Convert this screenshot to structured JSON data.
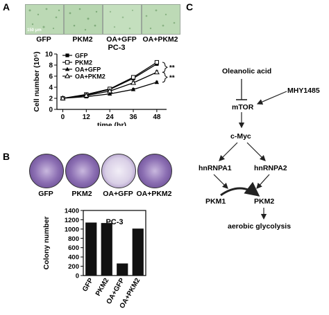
{
  "panels": {
    "a": "A",
    "b": "B",
    "c": "C"
  },
  "panel_a": {
    "scale_bar": "150 μm",
    "image_labels": [
      "GFP",
      "PKM2",
      "OA+GFP",
      "OA+PKM2"
    ],
    "chart_title": "PC-3",
    "significance": [
      "**",
      "**"
    ]
  },
  "panel_b": {
    "dish_labels": [
      "GFP",
      "PKM2",
      "OA+GFP",
      "OA+PKM2"
    ],
    "chart_title": "PC-3"
  },
  "panel_c": {
    "nodes": {
      "oleanolic": "Oleanolic acid",
      "mhy": "MHY1485",
      "mtor": "mTOR",
      "cmyc": "c-Myc",
      "hnrnpa1": "hnRNPA1",
      "hnrnpa2": "hnRNPA2",
      "pkm1": "PKM1",
      "pkm2": "PKM2",
      "glyco": "aerobic glycolysis"
    }
  },
  "chart_data": [
    {
      "type": "line",
      "title": "PC-3",
      "xlabel": "time (hr)",
      "ylabel": "Cell number (10⁵)",
      "x": [
        0,
        12,
        24,
        36,
        48
      ],
      "xlim": [
        -3,
        53
      ],
      "ylim": [
        0,
        10
      ],
      "xticks": [
        0,
        12,
        24,
        36,
        48
      ],
      "yticks": [
        0,
        2,
        4,
        6,
        8,
        10
      ],
      "legend_position": "top-left",
      "series": [
        {
          "name": "GFP",
          "values": [
            2.0,
            2.6,
            3.6,
            5.6,
            8.2
          ],
          "marker": "filled-square",
          "error": 0.3
        },
        {
          "name": "PKM2",
          "values": [
            2.0,
            2.7,
            3.7,
            5.8,
            8.5
          ],
          "marker": "open-square",
          "error": 0.3
        },
        {
          "name": "OA+GFP",
          "values": [
            2.0,
            2.3,
            2.8,
            3.6,
            4.9
          ],
          "marker": "filled-triangle",
          "error": 0.2
        },
        {
          "name": "OA+PKM2",
          "values": [
            2.0,
            2.5,
            3.3,
            4.8,
            6.7
          ],
          "marker": "open-triangle",
          "error": 0.3
        }
      ]
    },
    {
      "type": "bar",
      "title": "PC-3",
      "xlabel": "",
      "ylabel": "Colony number",
      "categories": [
        "GFP",
        "PKM2",
        "OA+GFP",
        "OA+PKM2"
      ],
      "values": [
        1140,
        1130,
        260,
        1010
      ],
      "ylim": [
        0,
        1400
      ],
      "yticks": [
        0,
        200,
        400,
        600,
        800,
        1000,
        1200,
        1400
      ]
    }
  ]
}
